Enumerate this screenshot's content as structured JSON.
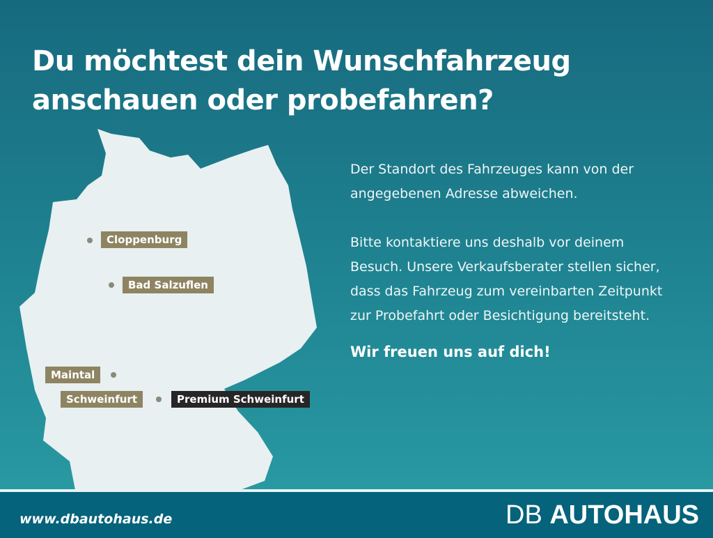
{
  "headline": {
    "line1": "Du möchtest dein Wunschfahrzeug",
    "line2": "anschauen oder probefahren?"
  },
  "map": {
    "locations": [
      {
        "name": "Cloppenburg",
        "style": "tan"
      },
      {
        "name": "Bad Salzuflen",
        "style": "tan"
      },
      {
        "name": "Maintal",
        "style": "tan"
      },
      {
        "name": "Schweinfurt",
        "style": "tan"
      },
      {
        "name": "Premium Schweinfurt",
        "style": "dark"
      }
    ],
    "colors": {
      "land": "#e8f0f2",
      "label": "#8e8462",
      "label_dark": "#262626"
    }
  },
  "body": {
    "p1": "Der Standort des Fahrzeuges kann von der angegebenen Adresse abweichen.",
    "p2": "Bitte kontaktiere uns deshalb vor deinem Besuch. Unsere Verkaufsberater stellen sicher, dass das Fahrzeug zum vereinbarten Zeitpunkt zur Probefahrt oder Besichtigung bereitsteht.",
    "closing": "Wir freuen uns auf dich!"
  },
  "footer": {
    "url": "www.dbautohaus.de",
    "logo_prefix": "DB",
    "logo_main": "AUTOHAUS"
  }
}
